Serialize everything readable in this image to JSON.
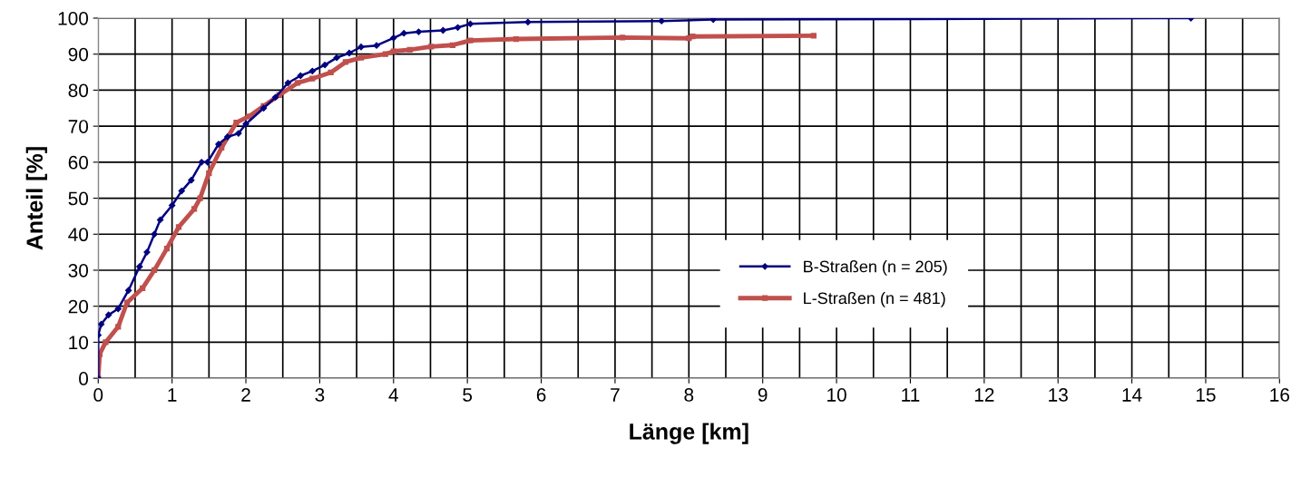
{
  "chart_data": {
    "type": "line",
    "xlabel": "Länge [km]",
    "ylabel": "Anteil [%]",
    "xlim": [
      0,
      16
    ],
    "xticks": [
      0,
      1,
      2,
      3,
      4,
      5,
      6,
      7,
      8,
      9,
      10,
      11,
      12,
      13,
      14,
      15,
      16
    ],
    "ylim": [
      0,
      100
    ],
    "yticks": [
      0,
      10,
      20,
      30,
      40,
      50,
      60,
      70,
      80,
      90,
      100
    ],
    "grid": true,
    "legend": "bottom right",
    "line_style": "solid",
    "series": [
      {
        "name": "B-Straßen (n = 205)",
        "color": "#000080",
        "marker": "diamond",
        "x": [
          0,
          0,
          0.04,
          0.14,
          0.27,
          0.41,
          0.56,
          0.66,
          0.76,
          0.84,
          1.0,
          1.13,
          1.26,
          1.4,
          1.48,
          1.63,
          1.75,
          1.9,
          2.0,
          2.24,
          2.4,
          2.57,
          2.74,
          2.9,
          3.07,
          3.23,
          3.4,
          3.56,
          3.77,
          4.0,
          4.14,
          4.34,
          4.67,
          4.87,
          5.04,
          5.82,
          7.63,
          8.33,
          14.8
        ],
        "values": [
          0,
          12,
          15,
          17.6,
          19.3,
          24.4,
          31,
          35,
          40,
          44,
          48,
          52,
          55,
          60,
          60,
          65,
          67,
          68,
          70.6,
          75,
          78,
          82,
          84,
          85.3,
          87,
          89,
          90.3,
          92,
          92.4,
          94.5,
          95.8,
          96.2,
          96.6,
          97.4,
          98.4,
          98.9,
          99.2,
          99.6,
          100
        ]
      },
      {
        "name": "L-Straßen (n = 481)",
        "color": "#c0504d",
        "marker": "square",
        "x": [
          0,
          0.02,
          0.1,
          0.27,
          0.39,
          0.6,
          0.76,
          0.93,
          1.09,
          1.3,
          1.38,
          1.5,
          1.67,
          1.87,
          2.04,
          2.24,
          2.45,
          2.7,
          2.9,
          3.15,
          3.35,
          3.56,
          3.89,
          4.0,
          4.22,
          4.51,
          4.8,
          5.04,
          5.66,
          7.1,
          8.0,
          8.05,
          9.69
        ],
        "values": [
          0,
          6.7,
          10,
          14.3,
          21,
          25,
          30,
          36,
          42,
          47,
          50,
          57,
          64,
          71,
          72.7,
          75.6,
          78.6,
          82,
          83.2,
          84.9,
          87.8,
          89,
          90,
          90.8,
          91.2,
          92.1,
          92.5,
          93.8,
          94.2,
          94.6,
          94.4,
          94.9,
          95.1
        ]
      }
    ]
  }
}
